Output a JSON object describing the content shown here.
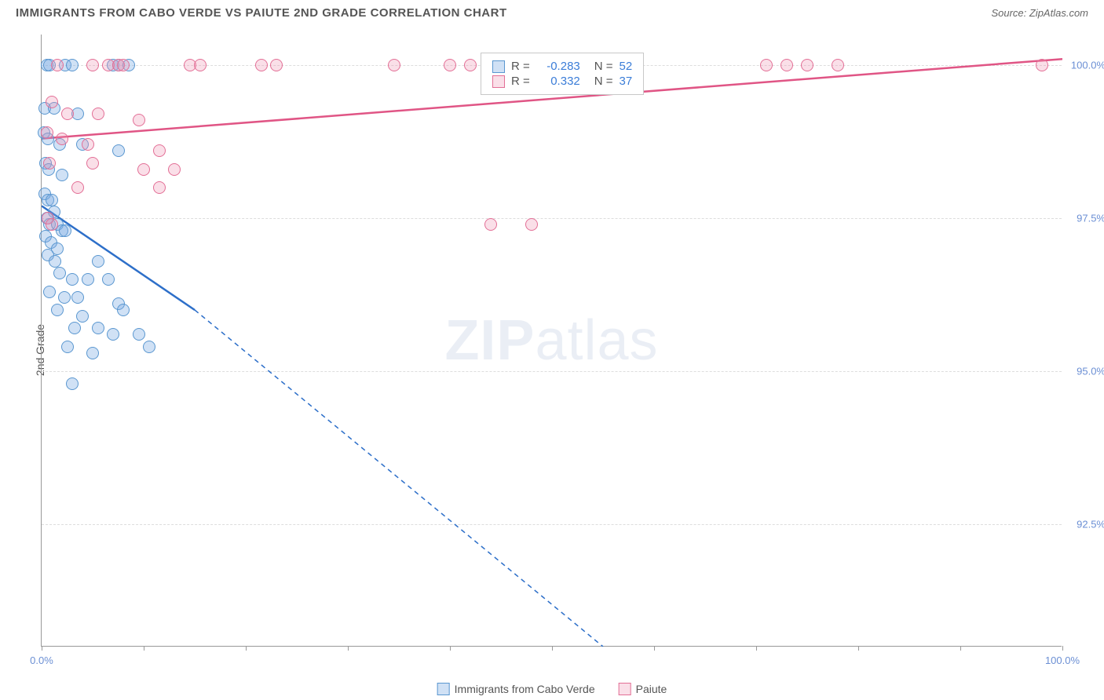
{
  "title": "IMMIGRANTS FROM CABO VERDE VS PAIUTE 2ND GRADE CORRELATION CHART",
  "source": "Source: ZipAtlas.com",
  "y_axis_label": "2nd Grade",
  "watermark": {
    "bold": "ZIP",
    "rest": "atlas"
  },
  "chart": {
    "type": "scatter",
    "background_color": "#ffffff",
    "grid_color": "#dddddd",
    "axis_color": "#999999",
    "tick_label_color": "#6b8fd4",
    "xlim": [
      0,
      100
    ],
    "ylim": [
      90.5,
      100.5
    ],
    "y_gridlines": [
      92.5,
      95.0,
      97.5,
      100.0
    ],
    "y_tick_labels": [
      "92.5%",
      "95.0%",
      "97.5%",
      "100.0%"
    ],
    "x_ticks": [
      0,
      10,
      20,
      30,
      40,
      50,
      60,
      70,
      80,
      90,
      100
    ],
    "x_tick_labels": {
      "0": "0.0%",
      "100": "100.0%"
    },
    "marker_radius": 8,
    "marker_stroke_width": 1.5,
    "series": [
      {
        "name": "Immigrants from Cabo Verde",
        "color_fill": "rgba(120,170,225,0.35)",
        "color_stroke": "#5a97d0",
        "trend_color": "#2d6fc9",
        "trend": {
          "x1": 0,
          "y1": 97.7,
          "x2_solid": 15,
          "y2_solid": 96.0,
          "x2_dash": 55,
          "y2_dash": 90.5
        },
        "points": [
          [
            0.5,
            100.0
          ],
          [
            0.8,
            100.0
          ],
          [
            2.3,
            100.0
          ],
          [
            3.0,
            100.0
          ],
          [
            7.0,
            100.0
          ],
          [
            7.5,
            100.0
          ],
          [
            8.5,
            100.0
          ],
          [
            0.3,
            99.3
          ],
          [
            1.2,
            99.3
          ],
          [
            3.5,
            99.2
          ],
          [
            0.2,
            98.9
          ],
          [
            0.6,
            98.8
          ],
          [
            1.8,
            98.7
          ],
          [
            4.0,
            98.7
          ],
          [
            7.5,
            98.6
          ],
          [
            0.4,
            98.4
          ],
          [
            0.7,
            98.3
          ],
          [
            2.0,
            98.2
          ],
          [
            0.3,
            97.9
          ],
          [
            0.6,
            97.8
          ],
          [
            1.0,
            97.8
          ],
          [
            1.2,
            97.6
          ],
          [
            0.5,
            97.5
          ],
          [
            0.8,
            97.4
          ],
          [
            1.5,
            97.4
          ],
          [
            2.0,
            97.3
          ],
          [
            2.3,
            97.3
          ],
          [
            0.4,
            97.2
          ],
          [
            0.9,
            97.1
          ],
          [
            1.5,
            97.0
          ],
          [
            0.6,
            96.9
          ],
          [
            1.3,
            96.8
          ],
          [
            5.5,
            96.8
          ],
          [
            1.8,
            96.6
          ],
          [
            3.0,
            96.5
          ],
          [
            4.5,
            96.5
          ],
          [
            6.5,
            96.5
          ],
          [
            0.8,
            96.3
          ],
          [
            2.2,
            96.2
          ],
          [
            3.5,
            96.2
          ],
          [
            7.5,
            96.1
          ],
          [
            1.5,
            96.0
          ],
          [
            4.0,
            95.9
          ],
          [
            8.0,
            96.0
          ],
          [
            3.2,
            95.7
          ],
          [
            5.5,
            95.7
          ],
          [
            7.0,
            95.6
          ],
          [
            9.5,
            95.6
          ],
          [
            2.5,
            95.4
          ],
          [
            5.0,
            95.3
          ],
          [
            10.5,
            95.4
          ],
          [
            3.0,
            94.8
          ]
        ]
      },
      {
        "name": "Paiute",
        "color_fill": "rgba(240,150,180,0.30)",
        "color_stroke": "#e36f96",
        "trend_color": "#e05585",
        "trend": {
          "x1": 0,
          "y1": 98.8,
          "x2_solid": 100,
          "y2_solid": 100.1,
          "x2_dash": 100,
          "y2_dash": 100.1
        },
        "points": [
          [
            1.5,
            100.0
          ],
          [
            5.0,
            100.0
          ],
          [
            6.5,
            100.0
          ],
          [
            7.5,
            100.0
          ],
          [
            8.0,
            100.0
          ],
          [
            14.5,
            100.0
          ],
          [
            15.5,
            100.0
          ],
          [
            21.5,
            100.0
          ],
          [
            23.0,
            100.0
          ],
          [
            34.5,
            100.0
          ],
          [
            40.0,
            100.0
          ],
          [
            42.0,
            100.0
          ],
          [
            45.5,
            100.0
          ],
          [
            47.0,
            100.0
          ],
          [
            71.0,
            100.0
          ],
          [
            73.0,
            100.0
          ],
          [
            75.0,
            100.0
          ],
          [
            78.0,
            100.0
          ],
          [
            98.0,
            100.0
          ],
          [
            1.0,
            99.4
          ],
          [
            2.5,
            99.2
          ],
          [
            5.5,
            99.2
          ],
          [
            9.5,
            99.1
          ],
          [
            0.5,
            98.9
          ],
          [
            2.0,
            98.8
          ],
          [
            4.5,
            98.7
          ],
          [
            11.5,
            98.6
          ],
          [
            0.8,
            98.4
          ],
          [
            5.0,
            98.4
          ],
          [
            10.0,
            98.3
          ],
          [
            13.0,
            98.3
          ],
          [
            3.5,
            98.0
          ],
          [
            11.5,
            98.0
          ],
          [
            44.0,
            97.4
          ],
          [
            48.0,
            97.4
          ],
          [
            0.6,
            97.5
          ],
          [
            1.0,
            97.4
          ]
        ]
      }
    ],
    "stats_box": {
      "rows": [
        {
          "swatch_fill": "rgba(120,170,225,0.35)",
          "swatch_stroke": "#5a97d0",
          "r_label": "R =",
          "r": "-0.283",
          "n_label": "N =",
          "n": "52"
        },
        {
          "swatch_fill": "rgba(240,150,180,0.30)",
          "swatch_stroke": "#e36f96",
          "r_label": "R =",
          "r": "0.332",
          "n_label": "N =",
          "n": "37"
        }
      ]
    }
  },
  "bottom_legend": [
    {
      "fill": "rgba(120,170,225,0.35)",
      "stroke": "#5a97d0",
      "label": "Immigrants from Cabo Verde"
    },
    {
      "fill": "rgba(240,150,180,0.30)",
      "stroke": "#e36f96",
      "label": "Paiute"
    }
  ]
}
